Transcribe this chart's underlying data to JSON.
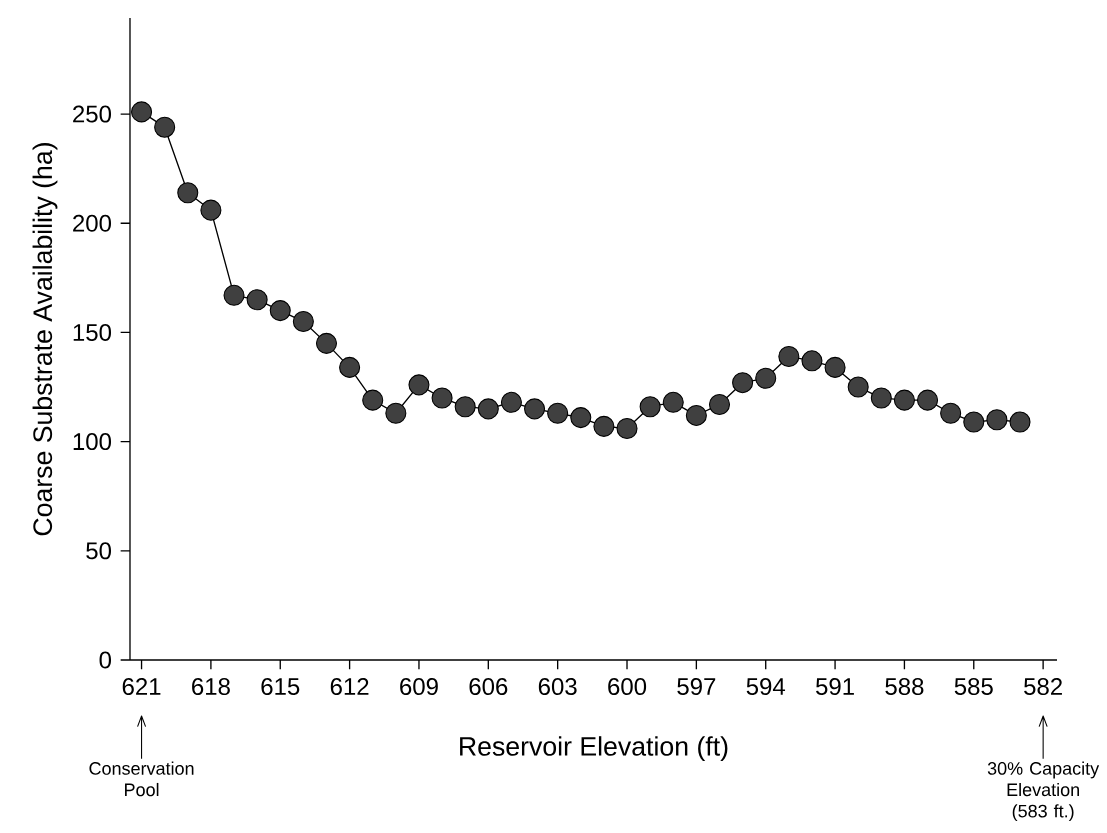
{
  "chart_data": {
    "type": "line",
    "xlabel": "Reservoir Elevation (ft)",
    "ylabel": "Coarse Substrate Availability (ha)",
    "x": [
      621,
      620,
      619,
      618,
      617,
      616,
      615,
      614,
      613,
      612,
      611,
      610,
      609,
      608,
      607,
      606,
      605,
      604,
      603,
      602,
      601,
      600,
      599,
      598,
      597,
      596,
      595,
      594,
      593,
      592,
      591,
      590,
      589,
      588,
      587,
      586,
      585,
      584,
      583
    ],
    "values": [
      251,
      244,
      214,
      206,
      167,
      165,
      160,
      155,
      145,
      134,
      119,
      113,
      126,
      120,
      116,
      115,
      118,
      115,
      113,
      111,
      107,
      106,
      116,
      118,
      112,
      117,
      127,
      129,
      139,
      137,
      134,
      125,
      120,
      119,
      119,
      113,
      109,
      110,
      109
    ],
    "color": "#404040",
    "marker": "circle",
    "line_style": "solid",
    "xlim": [
      621.5,
      581.4
    ],
    "ylim": [
      0,
      294
    ],
    "xticks": [
      621,
      618,
      615,
      612,
      609,
      606,
      603,
      600,
      597,
      594,
      591,
      588,
      585,
      582
    ],
    "yticks": [
      0,
      50,
      100,
      150,
      200,
      250
    ],
    "annotations": [
      "Conservation Pool",
      "30% Capacity Elevation (583 ft.)"
    ]
  }
}
